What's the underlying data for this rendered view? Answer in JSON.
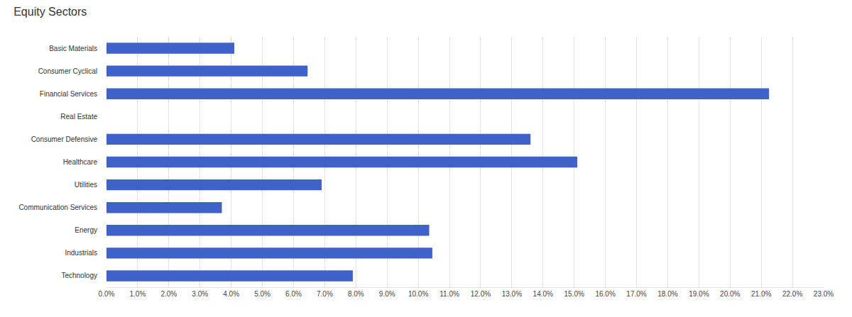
{
  "chart_data": {
    "type": "bar",
    "title": "Equity Sectors",
    "orientation": "horizontal",
    "categories": [
      "Basic Materials",
      "Consumer Cyclical",
      "Financial Services",
      "Real Estate",
      "Consumer Defensive",
      "Healthcare",
      "Utilities",
      "Communication Services",
      "Energy",
      "Industrials",
      "Technology"
    ],
    "values": [
      4.1,
      6.45,
      21.25,
      0,
      13.6,
      15.1,
      6.9,
      3.7,
      10.35,
      10.45,
      7.9
    ],
    "color": "#3f62c8",
    "xlim": [
      0,
      23
    ],
    "xticks": [
      {
        "value": 0,
        "label": "0.0%"
      },
      {
        "value": 1,
        "label": "1.0%"
      },
      {
        "value": 2,
        "label": "2.0%"
      },
      {
        "value": 3,
        "label": "3.0%"
      },
      {
        "value": 4,
        "label": "4.0%"
      },
      {
        "value": 5,
        "label": "5.0%"
      },
      {
        "value": 6,
        "label": "6.0%"
      },
      {
        "value": 7,
        "label": "7.0%"
      },
      {
        "value": 8,
        "label": "8.0%"
      },
      {
        "value": 9,
        "label": "9.0%"
      },
      {
        "value": 10,
        "label": "10.0%"
      },
      {
        "value": 11,
        "label": "11.0%"
      },
      {
        "value": 12,
        "label": "12.0%"
      },
      {
        "value": 13,
        "label": "13.0%"
      },
      {
        "value": 14,
        "label": "14.0%"
      },
      {
        "value": 15,
        "label": "15.0%"
      },
      {
        "value": 16,
        "label": "16.0%"
      },
      {
        "value": 17,
        "label": "17.0%"
      },
      {
        "value": 18,
        "label": "18.0%"
      },
      {
        "value": 19,
        "label": "19.0%"
      },
      {
        "value": 20,
        "label": "20.0%"
      },
      {
        "value": 21,
        "label": "21.0%"
      },
      {
        "value": 22,
        "label": "22.0%"
      },
      {
        "value": 23,
        "label": "23.0%"
      }
    ],
    "grid": true
  }
}
